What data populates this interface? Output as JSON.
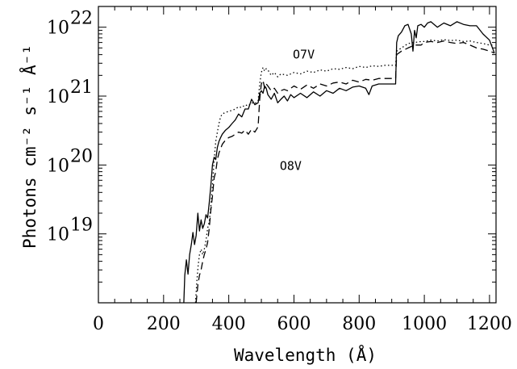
{
  "chart_data": {
    "type": "line",
    "xlabel": "Wavelength (Å)",
    "ylabel": "Photons cm⁻² s⁻¹ Å⁻¹",
    "xlim": [
      0,
      1220
    ],
    "ylim": [
      1e+18,
      2e+22
    ],
    "yscale": "log",
    "x_ticks": [
      0,
      200,
      400,
      600,
      800,
      1000,
      1200
    ],
    "x_tick_labels": [
      "0",
      "200",
      "400",
      "600",
      "800",
      "1000",
      "1200"
    ],
    "y_ticks": [
      1e+19,
      1e+20,
      1e+21,
      1e+22
    ],
    "y_tick_labels": [
      {
        "base": "10",
        "exp": "19"
      },
      {
        "base": "10",
        "exp": "20"
      },
      {
        "base": "10",
        "exp": "21"
      },
      {
        "base": "10",
        "exp": "22"
      }
    ],
    "annotations": [
      {
        "text": "O7V",
        "x": 630,
        "y": 3.5e+21
      },
      {
        "text": "O8V",
        "x": 590,
        "y": 8.5e+19
      }
    ],
    "series": [
      {
        "style": "solid",
        "color": "#000000",
        "x": [
          262,
          265,
          270,
          275,
          280,
          285,
          290,
          295,
          300,
          305,
          310,
          315,
          320,
          325,
          330,
          335,
          340,
          345,
          350,
          355,
          360,
          365,
          370,
          375,
          380,
          390,
          400,
          410,
          420,
          430,
          440,
          450,
          460,
          470,
          480,
          490,
          495,
          500,
          505,
          510,
          515,
          520,
          530,
          540,
          550,
          560,
          570,
          580,
          590,
          600,
          620,
          640,
          660,
          680,
          700,
          720,
          740,
          760,
          780,
          800,
          820,
          830,
          840,
          860,
          880,
          900,
          912,
          915,
          920,
          930,
          940,
          950,
          960,
          965,
          970,
          975,
          980,
          990,
          1000,
          1010,
          1020,
          1040,
          1060,
          1080,
          1100,
          1120,
          1140,
          1160,
          1180,
          1200,
          1215
        ],
        "y": [
          1e+18,
          2.5e+18,
          4.2e+18,
          2.6e+18,
          5e+18,
          7e+18,
          1.05e+19,
          7e+18,
          9.5e+18,
          2e+19,
          1.1e+19,
          1.6e+19,
          1.2e+19,
          1.4e+19,
          1.9e+19,
          1.7e+19,
          2.8e+19,
          5e+19,
          1e+20,
          1.3e+20,
          1.2e+20,
          1.8e+20,
          2.2e+20,
          2.5e+20,
          2.8e+20,
          3.2e+20,
          3.5e+20,
          4e+20,
          4.5e+20,
          5.5e+20,
          5e+20,
          6.5e+20,
          6.5e+20,
          9e+20,
          7.5e+20,
          8e+20,
          1.1e+21,
          1.2e+21,
          1.1e+21,
          1.4e+21,
          1.3e+21,
          1.05e+21,
          9e+20,
          1.1e+21,
          8e+20,
          9e+20,
          1e+21,
          8.5e+20,
          1.05e+21,
          9.5e+20,
          1.1e+21,
          9.5e+20,
          1.15e+21,
          1e+21,
          1.2e+21,
          1.1e+21,
          1.3e+21,
          1.2e+21,
          1.35e+21,
          1.4e+21,
          1.3e+21,
          1.05e+21,
          1.4e+21,
          1.5e+21,
          1.5e+21,
          1.5e+21,
          1.5e+21,
          6e+21,
          7.5e+21,
          8.5e+21,
          1.05e+22,
          1.1e+22,
          8e+21,
          4.5e+21,
          9e+21,
          7e+21,
          1.05e+22,
          1.1e+22,
          1e+22,
          1.15e+22,
          1.2e+22,
          1e+22,
          1.15e+22,
          1.05e+22,
          1.2e+22,
          1.1e+22,
          1.05e+22,
          1.05e+22,
          8e+21,
          6.5e+21,
          4.2e+21
        ]
      },
      {
        "style": "dashed",
        "color": "#000000",
        "x": [
          300,
          305,
          310,
          315,
          320,
          325,
          330,
          335,
          340,
          345,
          350,
          355,
          360,
          365,
          370,
          380,
          390,
          400,
          410,
          420,
          430,
          440,
          450,
          460,
          470,
          480,
          490,
          495,
          500,
          505,
          510,
          515,
          520,
          530,
          540,
          550,
          560,
          570,
          580,
          600,
          620,
          640,
          660,
          680,
          700,
          720,
          740,
          760,
          780,
          800,
          820,
          840,
          860,
          880,
          900,
          912,
          915,
          930,
          950,
          970,
          990,
          1000,
          1020,
          1040,
          1060,
          1080,
          1100,
          1120,
          1140,
          1160,
          1180,
          1200,
          1215
        ],
        "y": [
          1e+18,
          1.8e+18,
          2.5e+18,
          3e+18,
          4e+18,
          5e+18,
          6e+18,
          7.5e+18,
          1.2e+19,
          2.2e+19,
          3.5e+19,
          6.5e+19,
          8e+19,
          1.2e+20,
          1.5e+20,
          2e+20,
          2.3e+20,
          2.5e+20,
          2.6e+20,
          2.8e+20,
          3e+20,
          2.9e+20,
          3.2e+20,
          2.8e+20,
          3.3e+20,
          3e+20,
          3.6e+20,
          9e+20,
          1.5e+21,
          1.7e+21,
          1.3e+21,
          1.5e+21,
          1.4e+21,
          1.2e+21,
          1.3e+21,
          1.1e+21,
          1.2e+21,
          1.25e+21,
          1.2e+21,
          1.4e+21,
          1.25e+21,
          1.45e+21,
          1.3e+21,
          1.5e+21,
          1.4e+21,
          1.55e+21,
          1.6e+21,
          1.5e+21,
          1.7e+21,
          1.6e+21,
          1.75e+21,
          1.7e+21,
          1.8e+21,
          1.8e+21,
          1.8e+21,
          1.8e+21,
          4e+21,
          4.5e+21,
          5e+21,
          5.5e+21,
          5.5e+21,
          6e+21,
          6.2e+21,
          6e+21,
          6.3e+21,
          6e+21,
          5.8e+21,
          6e+21,
          5.5e+21,
          5e+21,
          4.8e+21,
          4.5e+21,
          4.2e+21
        ]
      },
      {
        "style": "dotted",
        "color": "#000000",
        "x": [
          298,
          302,
          306,
          310,
          315,
          320,
          325,
          330,
          335,
          340,
          345,
          350,
          355,
          360,
          365,
          370,
          375,
          380,
          390,
          400,
          410,
          420,
          430,
          440,
          450,
          460,
          470,
          480,
          490,
          495,
          500,
          505,
          510,
          515,
          520,
          530,
          540,
          550,
          560,
          580,
          600,
          620,
          640,
          660,
          680,
          700,
          720,
          740,
          760,
          780,
          800,
          820,
          840,
          860,
          880,
          900,
          912,
          915,
          930,
          950,
          970,
          990,
          1000,
          1020,
          1040,
          1060,
          1080,
          1100,
          1120,
          1140,
          1160,
          1180,
          1200,
          1215
        ],
        "y": [
          1e+18,
          2e+18,
          3.5e+18,
          5e+18,
          6e+18,
          5e+18,
          6e+18,
          8e+18,
          1.2e+19,
          1.5e+19,
          2.5e+19,
          5e+19,
          1.2e+20,
          2.2e+20,
          3e+20,
          4e+20,
          5e+20,
          5.5e+20,
          5.8e+20,
          6e+20,
          6.2e+20,
          6.5e+20,
          7e+20,
          6.8e+20,
          7.5e+20,
          7.2e+20,
          8e+20,
          7.8e+20,
          8.5e+20,
          1.5e+21,
          2.2e+21,
          2.6e+21,
          2.3e+21,
          2.5e+21,
          2.4e+21,
          2e+21,
          2.2e+21,
          1.9e+21,
          2.1e+21,
          2e+21,
          2.2e+21,
          2.1e+21,
          2.3e+21,
          2.2e+21,
          2.4e+21,
          2.3e+21,
          2.5e+21,
          2.45e+21,
          2.6e+21,
          2.5e+21,
          2.7e+21,
          2.6e+21,
          2.75e+21,
          2.7e+21,
          2.8e+21,
          2.8e+21,
          2.8e+21,
          4.5e+21,
          5e+21,
          5.8e+21,
          6e+21,
          6.2e+21,
          6.2e+21,
          6.5e+21,
          6.3e+21,
          6.6e+21,
          6.4e+21,
          6.5e+21,
          6.2e+21,
          6.3e+21,
          6e+21,
          5.8e+21,
          5.5e+21,
          5.5e+21
        ]
      }
    ]
  }
}
